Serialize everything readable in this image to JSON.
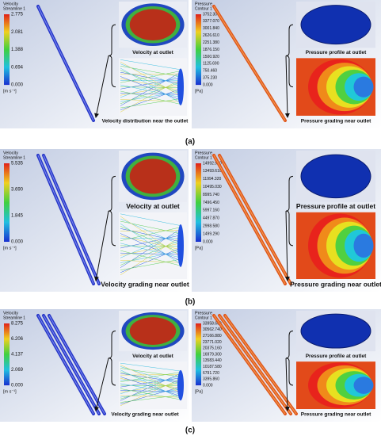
{
  "panels": [
    {
      "label": "(a)",
      "velocity": {
        "legend_title": "Velocity",
        "legend_subtitle": "Streamline 1",
        "legend_ticks": [
          "2.775",
          "2.081",
          "1.388",
          "0.694",
          "0.000"
        ],
        "unit": "[m s⁻¹]",
        "outlet_caption": "Velocity at outlet",
        "near_caption": "Velocity distribution near the outlet"
      },
      "pressure": {
        "legend_title": "Pressure",
        "legend_subtitle": "Contour 1",
        "legend_ticks": [
          "3752.300",
          "3377.070",
          "3001.840",
          "2626.610",
          "2251.380",
          "1876.150",
          "1500.920",
          "1125.690",
          "750.460",
          "375.230",
          "0.000"
        ],
        "unit": "[Pa]",
        "outlet_caption": "Pressure profile at outlet",
        "near_caption": "Pressure grading near outlet"
      }
    },
    {
      "label": "(b)",
      "velocity": {
        "legend_title": "Velocity",
        "legend_subtitle": "Streamline 1",
        "legend_ticks": [
          "5.535",
          "3.690",
          "1.845",
          "0.000"
        ],
        "unit": "[m s⁻¹]",
        "outlet_caption": "Velocity at outlet",
        "near_caption": "Velocity grading near outlet"
      },
      "pressure": {
        "legend_title": "Pressure",
        "legend_subtitle": "Contour 1",
        "legend_ticks": [
          "14992.900",
          "13493.610",
          "11994.320",
          "10495.030",
          "8995.740",
          "7496.450",
          "5997.160",
          "4497.870",
          "2998.580",
          "1499.290",
          "0.000"
        ],
        "unit": "[Pa]",
        "outlet_caption": "Pressure profile at outlet",
        "near_caption": "Pressure grading near outlet"
      }
    },
    {
      "label": "(c)",
      "velocity": {
        "legend_title": "Velocity",
        "legend_subtitle": "Streamline 1",
        "legend_ticks": [
          "8.275",
          "6.206",
          "4.137",
          "2.069",
          "0.000"
        ],
        "unit": "[m s⁻¹]",
        "outlet_caption": "Velocity at outlet",
        "near_caption": "Velocity grading near outlet"
      },
      "pressure": {
        "legend_title": "Pressure",
        "legend_subtitle": "Contour 1",
        "legend_ticks": [
          "33958.600",
          "30562.740",
          "27166.880",
          "23771.020",
          "20375.160",
          "16979.300",
          "13583.440",
          "10187.580",
          "6791.720",
          "3395.860",
          "0.000"
        ],
        "unit": "[Pa]",
        "outlet_caption": "Pressure profile at outlet",
        "near_caption": "Pressure grading near outlet"
      }
    }
  ]
}
